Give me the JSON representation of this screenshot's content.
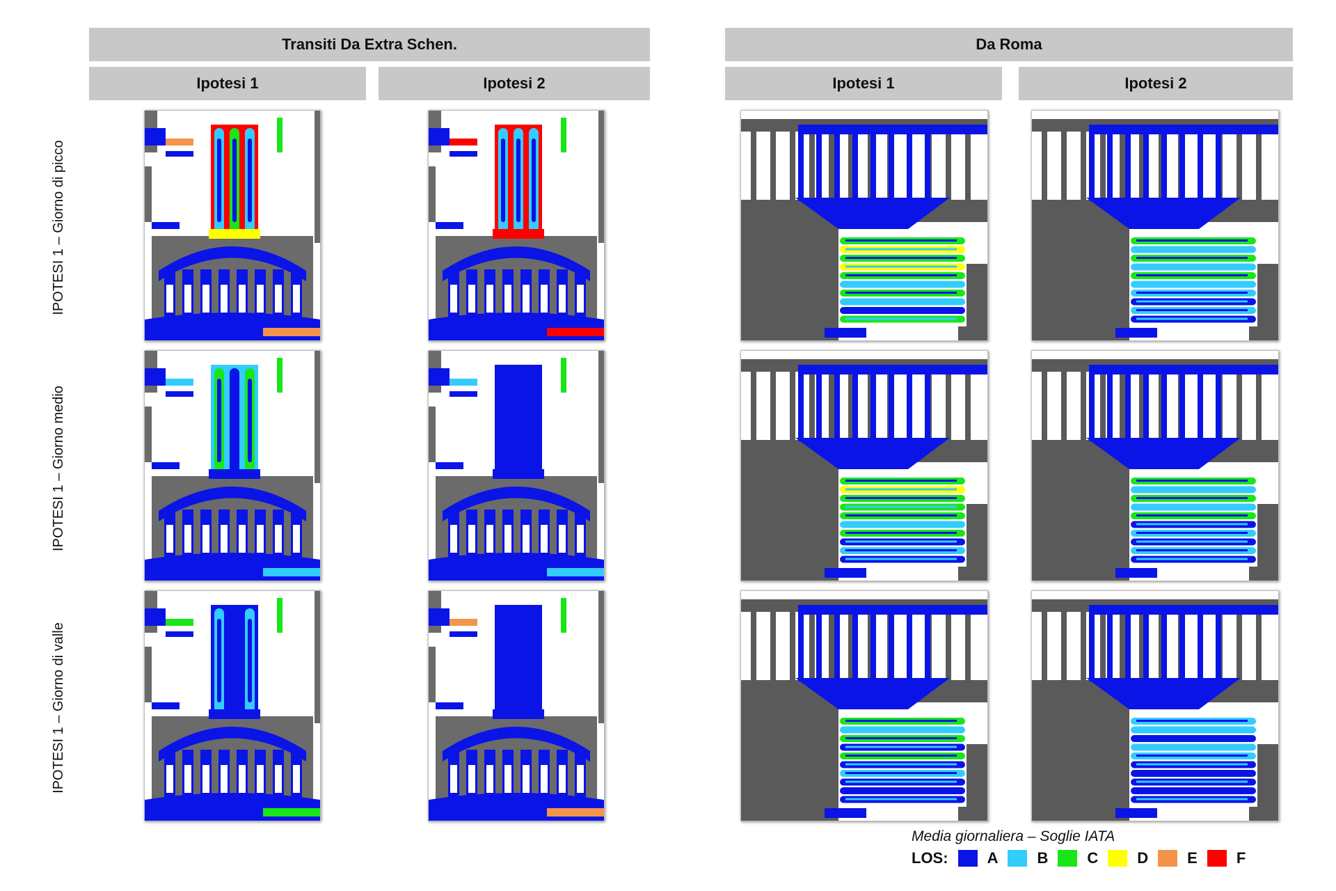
{
  "groups": [
    {
      "title": "Transiti Da Extra Schen.",
      "hypotheses": [
        "Ipotesi 1",
        "Ipotesi 2"
      ]
    },
    {
      "title": "Da Roma",
      "hypotheses": [
        "Ipotesi 1",
        "Ipotesi 2"
      ]
    }
  ],
  "rows": [
    "IPOTESI 1 – Giorno di picco",
    "IPOTESI 1 – Giorno medio",
    "IPOTESI 1 – Giorno di valle"
  ],
  "legend": {
    "title": "Media giornaliera – Soglie IATA",
    "prefix": "LOS:",
    "levels": [
      {
        "label": "A",
        "color": "#0a14e6"
      },
      {
        "label": "B",
        "color": "#33ccff"
      },
      {
        "label": "C",
        "color": "#19e619"
      },
      {
        "label": "D",
        "color": "#ffff00"
      },
      {
        "label": "E",
        "color": "#f5934a"
      },
      {
        "label": "F",
        "color": "#ff0000"
      }
    ]
  },
  "colors": {
    "wall": "#6b6b6b",
    "dark": "#5a5a5a",
    "header_bg": "#c8c8c8"
  }
}
